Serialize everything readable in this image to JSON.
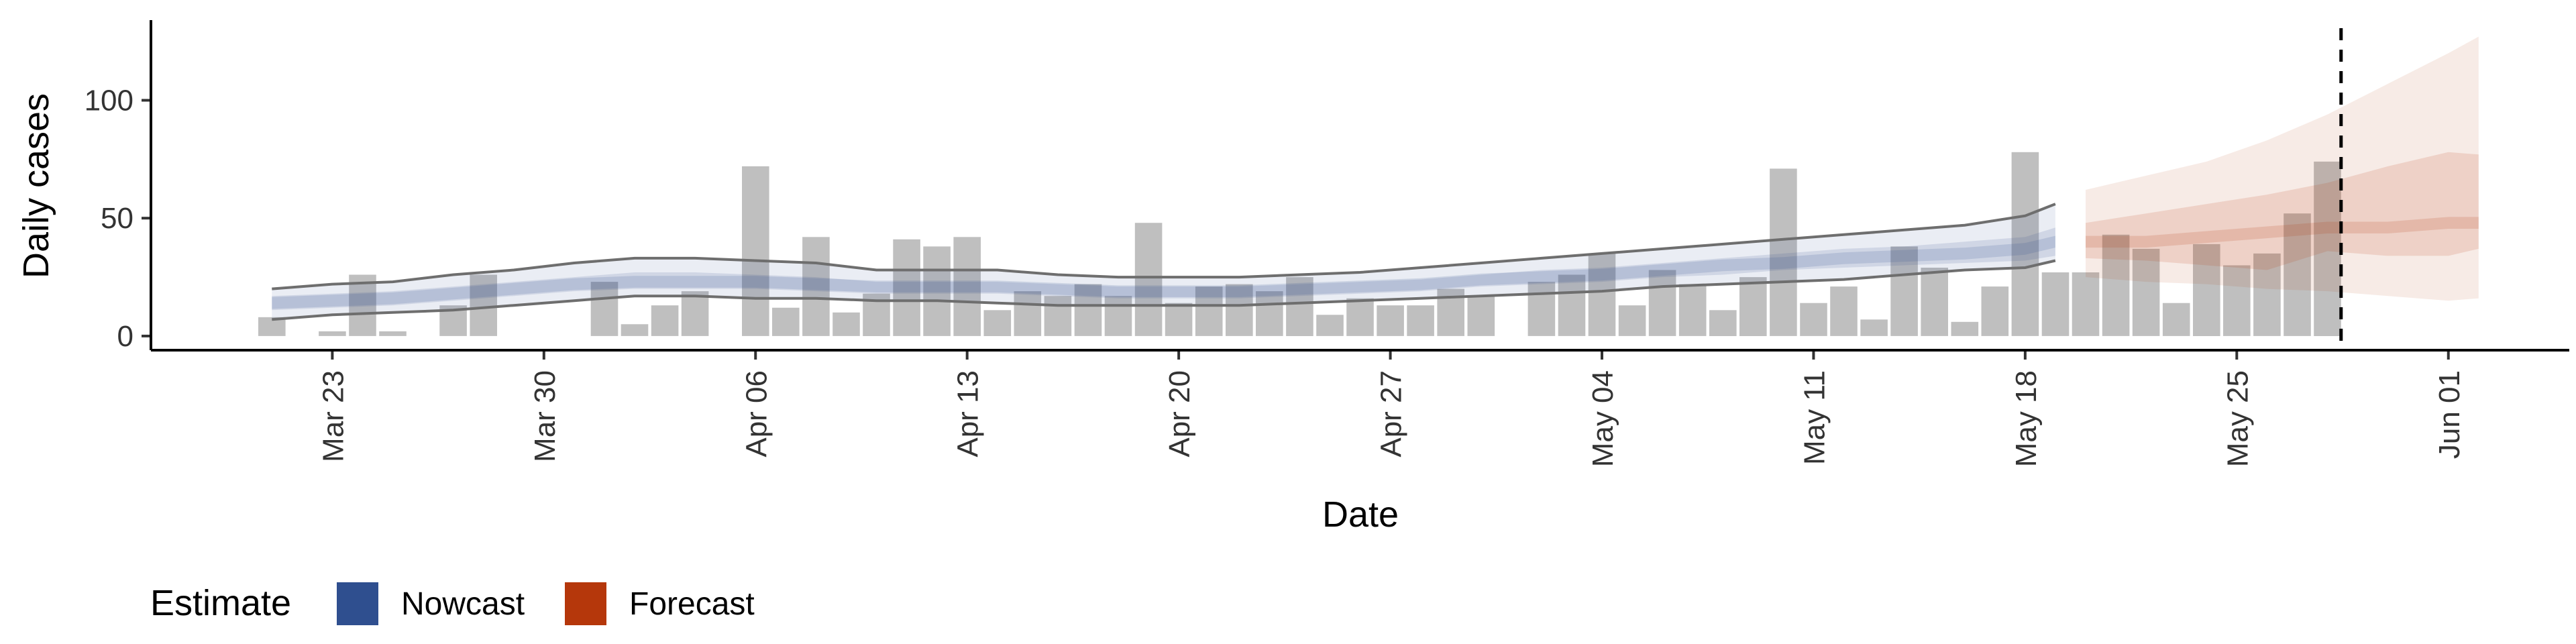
{
  "chart_data": {
    "type": "bar",
    "xlabel": "Date",
    "ylabel": "Daily cases",
    "x_ticks": [
      "Mar 23",
      "Mar 30",
      "Apr 06",
      "Apr 13",
      "Apr 20",
      "Apr 27",
      "May 04",
      "May 11",
      "May 18",
      "May 25",
      "Jun 01"
    ],
    "x_tick_dates": [
      "2020-03-23",
      "2020-03-30",
      "2020-04-06",
      "2020-04-13",
      "2020-04-20",
      "2020-04-27",
      "2020-05-04",
      "2020-05-11",
      "2020-05-18",
      "2020-05-25",
      "2020-06-01"
    ],
    "y_ticks": [
      0,
      50,
      100
    ],
    "ylim": [
      -6,
      134
    ],
    "xlim": [
      "2020-03-17",
      "2020-06-05"
    ],
    "grid": false,
    "legend_position": "bottom-left",
    "cutoff_date": "2020-05-28",
    "cases": {
      "dates": [
        "2020-03-21",
        "2020-03-22",
        "2020-03-23",
        "2020-03-24",
        "2020-03-25",
        "2020-03-26",
        "2020-03-27",
        "2020-03-28",
        "2020-03-29",
        "2020-03-30",
        "2020-03-31",
        "2020-04-01",
        "2020-04-02",
        "2020-04-03",
        "2020-04-04",
        "2020-04-05",
        "2020-04-06",
        "2020-04-07",
        "2020-04-08",
        "2020-04-09",
        "2020-04-10",
        "2020-04-11",
        "2020-04-12",
        "2020-04-13",
        "2020-04-14",
        "2020-04-15",
        "2020-04-16",
        "2020-04-17",
        "2020-04-18",
        "2020-04-19",
        "2020-04-20",
        "2020-04-21",
        "2020-04-22",
        "2020-04-23",
        "2020-04-24",
        "2020-04-25",
        "2020-04-26",
        "2020-04-27",
        "2020-04-28",
        "2020-04-29",
        "2020-04-30",
        "2020-05-01",
        "2020-05-02",
        "2020-05-03",
        "2020-05-04",
        "2020-05-05",
        "2020-05-06",
        "2020-05-07",
        "2020-05-08",
        "2020-05-09",
        "2020-05-10",
        "2020-05-11",
        "2020-05-12",
        "2020-05-13",
        "2020-05-14",
        "2020-05-15",
        "2020-05-16",
        "2020-05-17",
        "2020-05-18",
        "2020-05-19",
        "2020-05-20",
        "2020-05-21",
        "2020-05-22",
        "2020-05-23",
        "2020-05-24",
        "2020-05-25",
        "2020-05-26",
        "2020-05-27",
        "2020-05-28"
      ],
      "values": [
        8,
        0,
        2,
        26,
        2,
        0,
        13,
        26,
        0,
        0,
        0,
        23,
        5,
        13,
        19,
        0,
        72,
        12,
        42,
        10,
        18,
        41,
        38,
        42,
        11,
        19,
        17,
        22,
        17,
        48,
        14,
        21,
        22,
        19,
        25,
        9,
        16,
        13,
        13,
        20,
        17,
        0,
        23,
        26,
        35,
        13,
        28,
        22,
        11,
        25,
        71,
        14,
        21,
        7,
        38,
        29,
        6,
        21,
        78,
        27,
        27,
        43,
        37,
        14,
        39,
        30,
        35,
        52,
        74
      ]
    },
    "series": [
      {
        "name": "Nowcast",
        "color": "#2f4f8f",
        "dates": [
          "2020-03-21",
          "2020-03-23",
          "2020-03-25",
          "2020-03-27",
          "2020-03-29",
          "2020-03-31",
          "2020-04-02",
          "2020-04-04",
          "2020-04-06",
          "2020-04-08",
          "2020-04-10",
          "2020-04-12",
          "2020-04-14",
          "2020-04-16",
          "2020-04-18",
          "2020-04-20",
          "2020-04-22",
          "2020-04-24",
          "2020-04-26",
          "2020-04-28",
          "2020-04-30",
          "2020-05-02",
          "2020-05-04",
          "2020-05-06",
          "2020-05-08",
          "2020-05-10",
          "2020-05-12",
          "2020-05-14",
          "2020-05-16",
          "2020-05-18",
          "2020-05-19"
        ],
        "upper90": [
          20,
          22,
          23,
          26,
          28,
          31,
          33,
          33,
          32,
          31,
          28,
          28,
          28,
          26,
          25,
          25,
          25,
          26,
          27,
          29,
          31,
          33,
          35,
          37,
          39,
          41,
          43,
          45,
          47,
          51,
          56
        ],
        "upper50": [
          17,
          18,
          19,
          21,
          23,
          25,
          27,
          27,
          26,
          25,
          23,
          23,
          23,
          22,
          21,
          21,
          21,
          22,
          23,
          24,
          26,
          28,
          29,
          31,
          33,
          35,
          37,
          38,
          40,
          42,
          46
        ],
        "median": [
          14,
          15,
          16,
          18,
          20,
          22,
          23,
          23,
          23,
          22,
          21,
          21,
          21,
          20,
          19,
          19,
          19,
          20,
          21,
          22,
          24,
          25,
          26,
          28,
          30,
          31,
          33,
          34,
          35,
          37,
          40
        ],
        "lower50": [
          11,
          12,
          13,
          15,
          17,
          19,
          20,
          20,
          20,
          19,
          18,
          18,
          18,
          17,
          16,
          16,
          16,
          17,
          18,
          19,
          21,
          22,
          23,
          25,
          26,
          28,
          29,
          30,
          31,
          32,
          34
        ],
        "lower90": [
          7,
          9,
          10,
          11,
          13,
          15,
          17,
          17,
          16,
          16,
          15,
          15,
          14,
          13,
          13,
          13,
          13,
          14,
          15,
          16,
          17,
          18,
          19,
          21,
          22,
          23,
          24,
          26,
          28,
          29,
          32
        ]
      },
      {
        "name": "Forecast",
        "color": "#b5370b",
        "dates": [
          "2020-05-20",
          "2020-05-22",
          "2020-05-24",
          "2020-05-26",
          "2020-05-28",
          "2020-05-30",
          "2020-06-01",
          "2020-06-02"
        ],
        "upper90": [
          62,
          68,
          74,
          83,
          94,
          107,
          120,
          127
        ],
        "upper50": [
          48,
          52,
          56,
          60,
          65,
          72,
          78,
          77
        ],
        "median": [
          40,
          40,
          42,
          44,
          46,
          46,
          48,
          48
        ],
        "lower50": [
          33,
          32,
          30,
          28,
          36,
          34,
          34,
          37
        ],
        "lower90": [
          25,
          23,
          22,
          20,
          19,
          17,
          15,
          16
        ]
      }
    ],
    "legend": {
      "title": "Estimate",
      "items": [
        {
          "label": "Nowcast",
          "color": "#2f4f8f"
        },
        {
          "label": "Forecast",
          "color": "#b5370b"
        }
      ]
    }
  }
}
